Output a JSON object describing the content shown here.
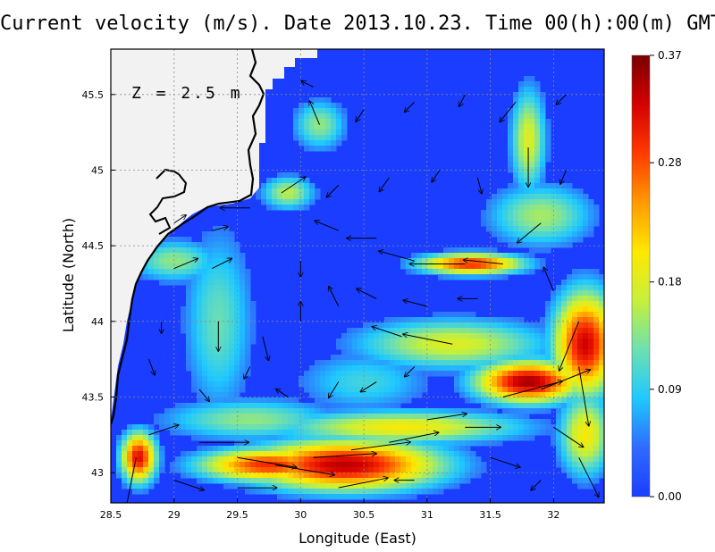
{
  "chart_data": {
    "type": "heatmap",
    "title": "Current velocity (m/s). Date 2013.10.23. Time 00(h):00(m) GMT",
    "xlabel": "Longitude (East)",
    "ylabel": "Latitude (North)",
    "xlim": [
      28.5,
      32.4
    ],
    "ylim": [
      42.8,
      45.8
    ],
    "x_ticks": [
      "28.5",
      "29",
      "29.5",
      "30",
      "30.5",
      "31",
      "31.5",
      "32"
    ],
    "x_tick_values": [
      28.5,
      29,
      29.5,
      30,
      30.5,
      31,
      31.5,
      32
    ],
    "y_ticks": [
      "43",
      "43.5",
      "44",
      "44.5",
      "45",
      "45.5"
    ],
    "y_tick_values": [
      43,
      43.5,
      44,
      44.5,
      45,
      45.5
    ],
    "grid": true,
    "annotation": "Z = 2.5 m",
    "colorbar": {
      "min": 0.0,
      "max": 0.37,
      "tick_labels": [
        "0.00",
        "0.09",
        "0.18",
        "0.28",
        "0.37"
      ],
      "tick_values": [
        0.0,
        0.09,
        0.18,
        0.28,
        0.37
      ],
      "colors": [
        "#1a3dff",
        "#2f6bff",
        "#1fc8ff",
        "#6ee0b0",
        "#c6f03a",
        "#ffe800",
        "#ff9a00",
        "#ff3a00",
        "#d40000",
        "#7a0000"
      ]
    },
    "speed_field": {
      "blobs": [
        {
          "lon": 30.35,
          "lat": 43.05,
          "sigma_lon": 0.55,
          "sigma_lat": 0.12,
          "speed": 0.34
        },
        {
          "lon": 29.75,
          "lat": 43.05,
          "sigma_lon": 0.4,
          "sigma_lat": 0.08,
          "speed": 0.3
        },
        {
          "lon": 28.72,
          "lat": 43.1,
          "sigma_lon": 0.1,
          "sigma_lat": 0.12,
          "speed": 0.32
        },
        {
          "lon": 31.8,
          "lat": 43.6,
          "sigma_lon": 0.3,
          "sigma_lat": 0.1,
          "speed": 0.35
        },
        {
          "lon": 32.25,
          "lat": 43.85,
          "sigma_lon": 0.18,
          "sigma_lat": 0.25,
          "speed": 0.33
        },
        {
          "lon": 31.35,
          "lat": 44.38,
          "sigma_lon": 0.3,
          "sigma_lat": 0.05,
          "speed": 0.3
        },
        {
          "lon": 31.2,
          "lat": 43.85,
          "sigma_lon": 0.55,
          "sigma_lat": 0.12,
          "speed": 0.18
        },
        {
          "lon": 30.8,
          "lat": 43.3,
          "sigma_lon": 0.7,
          "sigma_lat": 0.08,
          "speed": 0.2
        },
        {
          "lon": 29.6,
          "lat": 43.35,
          "sigma_lon": 0.5,
          "sigma_lat": 0.1,
          "speed": 0.14
        },
        {
          "lon": 31.8,
          "lat": 45.2,
          "sigma_lon": 0.1,
          "sigma_lat": 0.25,
          "speed": 0.18
        },
        {
          "lon": 30.15,
          "lat": 45.3,
          "sigma_lon": 0.15,
          "sigma_lat": 0.12,
          "speed": 0.14
        },
        {
          "lon": 29.9,
          "lat": 44.85,
          "sigma_lon": 0.15,
          "sigma_lat": 0.08,
          "speed": 0.16
        },
        {
          "lon": 29.35,
          "lat": 44.0,
          "sigma_lon": 0.2,
          "sigma_lat": 0.45,
          "speed": 0.12
        },
        {
          "lon": 31.9,
          "lat": 44.7,
          "sigma_lon": 0.3,
          "sigma_lat": 0.15,
          "speed": 0.15
        },
        {
          "lon": 32.25,
          "lat": 43.25,
          "sigma_lon": 0.15,
          "sigma_lat": 0.2,
          "speed": 0.2
        },
        {
          "lon": 29.0,
          "lat": 44.4,
          "sigma_lon": 0.25,
          "sigma_lat": 0.1,
          "speed": 0.14
        },
        {
          "lon": 30.5,
          "lat": 43.6,
          "sigma_lon": 0.4,
          "sigma_lat": 0.15,
          "speed": 0.1
        }
      ]
    },
    "vectors": [
      {
        "lon": 29.5,
        "lat": 43.1,
        "u": 0.3,
        "v": -0.05
      },
      {
        "lon": 29.2,
        "lat": 43.2,
        "u": 0.25,
        "v": 0.0
      },
      {
        "lon": 29.8,
        "lat": 43.05,
        "u": 0.3,
        "v": -0.05
      },
      {
        "lon": 30.1,
        "lat": 43.1,
        "u": 0.32,
        "v": 0.02
      },
      {
        "lon": 30.4,
        "lat": 43.15,
        "u": 0.3,
        "v": 0.04
      },
      {
        "lon": 30.7,
        "lat": 43.2,
        "u": 0.25,
        "v": 0.05
      },
      {
        "lon": 28.7,
        "lat": 43.1,
        "u": -0.05,
        "v": -0.25
      },
      {
        "lon": 28.8,
        "lat": 43.25,
        "u": 0.15,
        "v": 0.05
      },
      {
        "lon": 29.0,
        "lat": 42.95,
        "u": 0.15,
        "v": -0.05
      },
      {
        "lon": 29.5,
        "lat": 42.9,
        "u": 0.2,
        "v": 0.0
      },
      {
        "lon": 31.6,
        "lat": 43.5,
        "u": 0.3,
        "v": 0.08
      },
      {
        "lon": 31.9,
        "lat": 43.55,
        "u": 0.25,
        "v": 0.1
      },
      {
        "lon": 32.2,
        "lat": 43.7,
        "u": 0.05,
        "v": -0.3
      },
      {
        "lon": 32.2,
        "lat": 44.0,
        "u": -0.1,
        "v": -0.25
      },
      {
        "lon": 31.2,
        "lat": 43.85,
        "u": -0.25,
        "v": 0.05
      },
      {
        "lon": 30.8,
        "lat": 43.9,
        "u": -0.15,
        "v": 0.05
      },
      {
        "lon": 31.3,
        "lat": 44.38,
        "u": -0.28,
        "v": 0.0
      },
      {
        "lon": 31.6,
        "lat": 44.38,
        "u": -0.2,
        "v": 0.02
      },
      {
        "lon": 30.9,
        "lat": 44.4,
        "u": -0.18,
        "v": 0.05
      },
      {
        "lon": 30.6,
        "lat": 44.55,
        "u": -0.15,
        "v": 0.0
      },
      {
        "lon": 30.3,
        "lat": 44.6,
        "u": -0.12,
        "v": 0.05
      },
      {
        "lon": 31.9,
        "lat": 44.65,
        "u": -0.12,
        "v": -0.1
      },
      {
        "lon": 31.8,
        "lat": 45.15,
        "u": 0.0,
        "v": -0.2
      },
      {
        "lon": 31.7,
        "lat": 45.45,
        "u": -0.08,
        "v": -0.1
      },
      {
        "lon": 30.15,
        "lat": 45.3,
        "u": -0.05,
        "v": 0.12
      },
      {
        "lon": 29.85,
        "lat": 44.85,
        "u": 0.12,
        "v": 0.08
      },
      {
        "lon": 29.6,
        "lat": 44.75,
        "u": -0.15,
        "v": 0.0
      },
      {
        "lon": 29.3,
        "lat": 44.35,
        "u": 0.1,
        "v": 0.05
      },
      {
        "lon": 29.0,
        "lat": 44.35,
        "u": 0.12,
        "v": 0.05
      },
      {
        "lon": 29.35,
        "lat": 44.0,
        "u": 0.0,
        "v": -0.15
      },
      {
        "lon": 29.7,
        "lat": 43.9,
        "u": 0.03,
        "v": -0.12
      },
      {
        "lon": 30.0,
        "lat": 44.0,
        "u": 0.0,
        "v": 0.1
      },
      {
        "lon": 30.3,
        "lat": 44.1,
        "u": -0.05,
        "v": 0.1
      },
      {
        "lon": 30.6,
        "lat": 44.15,
        "u": -0.1,
        "v": 0.05
      },
      {
        "lon": 31.0,
        "lat": 44.1,
        "u": -0.12,
        "v": 0.03
      },
      {
        "lon": 31.4,
        "lat": 44.15,
        "u": -0.1,
        "v": 0.0
      },
      {
        "lon": 32.0,
        "lat": 44.2,
        "u": -0.05,
        "v": 0.12
      },
      {
        "lon": 30.3,
        "lat": 43.6,
        "u": -0.05,
        "v": -0.08
      },
      {
        "lon": 30.6,
        "lat": 43.6,
        "u": -0.08,
        "v": -0.05
      },
      {
        "lon": 29.9,
        "lat": 43.5,
        "u": -0.06,
        "v": 0.04
      },
      {
        "lon": 29.2,
        "lat": 43.55,
        "u": 0.05,
        "v": -0.06
      },
      {
        "lon": 28.8,
        "lat": 43.75,
        "u": 0.03,
        "v": -0.08
      },
      {
        "lon": 31.0,
        "lat": 43.35,
        "u": 0.2,
        "v": 0.03
      },
      {
        "lon": 31.3,
        "lat": 43.3,
        "u": 0.18,
        "v": 0.0
      },
      {
        "lon": 32.0,
        "lat": 43.3,
        "u": 0.15,
        "v": -0.1
      },
      {
        "lon": 32.2,
        "lat": 43.1,
        "u": 0.1,
        "v": -0.2
      },
      {
        "lon": 31.5,
        "lat": 43.1,
        "u": 0.15,
        "v": -0.05
      },
      {
        "lon": 30.9,
        "lat": 42.95,
        "u": -0.1,
        "v": 0.0
      },
      {
        "lon": 31.9,
        "lat": 42.95,
        "u": -0.05,
        "v": -0.05
      },
      {
        "lon": 30.3,
        "lat": 42.9,
        "u": 0.25,
        "v": 0.05
      },
      {
        "lon": 30.3,
        "lat": 44.9,
        "u": -0.06,
        "v": -0.06
      },
      {
        "lon": 30.7,
        "lat": 44.95,
        "u": -0.05,
        "v": -0.07
      },
      {
        "lon": 31.1,
        "lat": 45.0,
        "u": -0.04,
        "v": -0.06
      },
      {
        "lon": 31.4,
        "lat": 44.95,
        "u": 0.02,
        "v": -0.08
      },
      {
        "lon": 30.5,
        "lat": 45.4,
        "u": -0.04,
        "v": -0.06
      },
      {
        "lon": 30.9,
        "lat": 45.45,
        "u": -0.05,
        "v": -0.05
      },
      {
        "lon": 31.3,
        "lat": 45.5,
        "u": -0.03,
        "v": -0.06
      },
      {
        "lon": 30.1,
        "lat": 45.55,
        "u": -0.06,
        "v": 0.03
      },
      {
        "lon": 32.1,
        "lat": 45.5,
        "u": -0.05,
        "v": -0.05
      },
      {
        "lon": 32.1,
        "lat": 45.0,
        "u": -0.03,
        "v": -0.07
      },
      {
        "lon": 30.0,
        "lat": 44.4,
        "u": 0.0,
        "v": -0.08
      },
      {
        "lon": 30.9,
        "lat": 43.7,
        "u": -0.05,
        "v": -0.05
      },
      {
        "lon": 29.6,
        "lat": 43.7,
        "u": -0.03,
        "v": -0.06
      },
      {
        "lon": 28.9,
        "lat": 44.0,
        "u": 0.0,
        "v": -0.06
      },
      {
        "lon": 29.0,
        "lat": 44.65,
        "u": 0.06,
        "v": 0.04
      },
      {
        "lon": 29.3,
        "lat": 44.6,
        "u": 0.08,
        "v": 0.02
      }
    ]
  }
}
